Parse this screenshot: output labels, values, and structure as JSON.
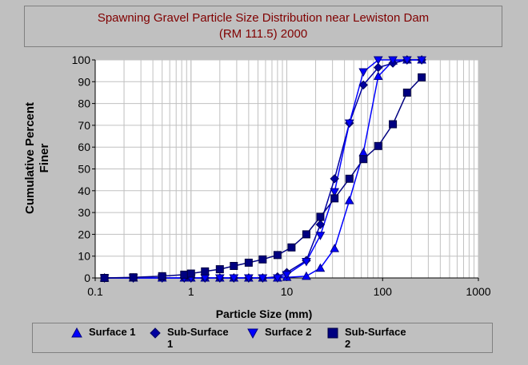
{
  "title_lines": [
    "Spawning Gravel Particle Size Distribution near Lewiston Dam",
    "(RM 111.5) 2000"
  ],
  "chart_data": {
    "type": "scatter",
    "title": "Spawning Gravel Particle Size Distribution near Lewiston Dam (RM 111.5) 2000",
    "xlabel": "Particle Size (mm)",
    "ylabel": "Cumulative Percent Finer",
    "xscale": "log",
    "xlim": [
      0.1,
      1000
    ],
    "ylim": [
      0,
      100
    ],
    "x_ticks": [
      "0.1",
      "1",
      "10",
      "100",
      "1000"
    ],
    "y_ticks": [
      "0",
      "10",
      "20",
      "30",
      "40",
      "50",
      "60",
      "70",
      "80",
      "90",
      "100"
    ],
    "grid": "vertical minor log gridlines; horizontal gridlines at every 10",
    "legend_position": "bottom",
    "series": [
      {
        "name": "Surface 1",
        "marker": "triangle-up",
        "color": "#0000ff",
        "x": [
          0.125,
          0.25,
          0.5,
          0.85,
          1,
          1.4,
          2,
          2.8,
          4,
          5.6,
          8,
          10,
          16,
          22.4,
          31.5,
          45,
          63,
          90,
          128,
          180,
          256
        ],
        "y": [
          0,
          0,
          0,
          0,
          0,
          0,
          0,
          0,
          0,
          0,
          0,
          0.3,
          0.8,
          4.5,
          13.5,
          35.5,
          57.5,
          92.5,
          99.5,
          100,
          100
        ]
      },
      {
        "name": "Sub-Surface 1",
        "marker": "diamond",
        "color": "#0000a0",
        "x": [
          0.125,
          0.25,
          0.5,
          0.85,
          1,
          1.4,
          2,
          2.8,
          4,
          5.6,
          8,
          10,
          16,
          22.4,
          31.5,
          45,
          63,
          90,
          128,
          180,
          256
        ],
        "y": [
          0,
          0,
          0,
          0,
          0,
          0,
          0,
          0,
          0,
          0,
          0.5,
          2.5,
          8,
          24.5,
          45.5,
          71,
          88.5,
          96.5,
          98.5,
          100,
          100
        ]
      },
      {
        "name": "Surface 2",
        "marker": "triangle-down",
        "color": "#0000ff",
        "x": [
          0.125,
          0.25,
          0.5,
          0.85,
          1,
          1.4,
          2,
          2.8,
          4,
          5.6,
          8,
          10,
          16,
          22.4,
          31.5,
          45,
          63,
          90,
          128,
          180,
          256
        ],
        "y": [
          0,
          0,
          0,
          0,
          0,
          0,
          0,
          0,
          0,
          0,
          0,
          1.5,
          7.5,
          19.5,
          39.5,
          71,
          94.5,
          100,
          100,
          100,
          100
        ]
      },
      {
        "name": "Sub-Surface 2",
        "marker": "square",
        "color": "#000080",
        "x": [
          0.125,
          0.25,
          0.5,
          0.85,
          1,
          1.4,
          2,
          2.8,
          4,
          5.6,
          8,
          11.2,
          16,
          22.4,
          31.5,
          45,
          63,
          90,
          128,
          180,
          256
        ],
        "y": [
          0,
          0.3,
          0.8,
          1.5,
          2,
          3,
          4,
          5.5,
          7,
          8.5,
          10.5,
          14,
          20,
          28,
          36.5,
          45.5,
          54.5,
          60.5,
          70.5,
          85,
          92
        ]
      }
    ]
  },
  "legend": [
    {
      "marker": "triangle-up",
      "lines": [
        "Surface 1"
      ]
    },
    {
      "marker": "diamond",
      "lines": [
        "Sub-Surface",
        "1"
      ]
    },
    {
      "marker": "triangle-down",
      "lines": [
        "Surface 2"
      ]
    },
    {
      "marker": "square",
      "lines": [
        "Sub-Surface",
        "2"
      ]
    }
  ],
  "colors": {
    "background": "#c0c0c0",
    "plot_area": "#ffffff",
    "title_text": "#800000",
    "gridline": "#c0c0c0"
  }
}
